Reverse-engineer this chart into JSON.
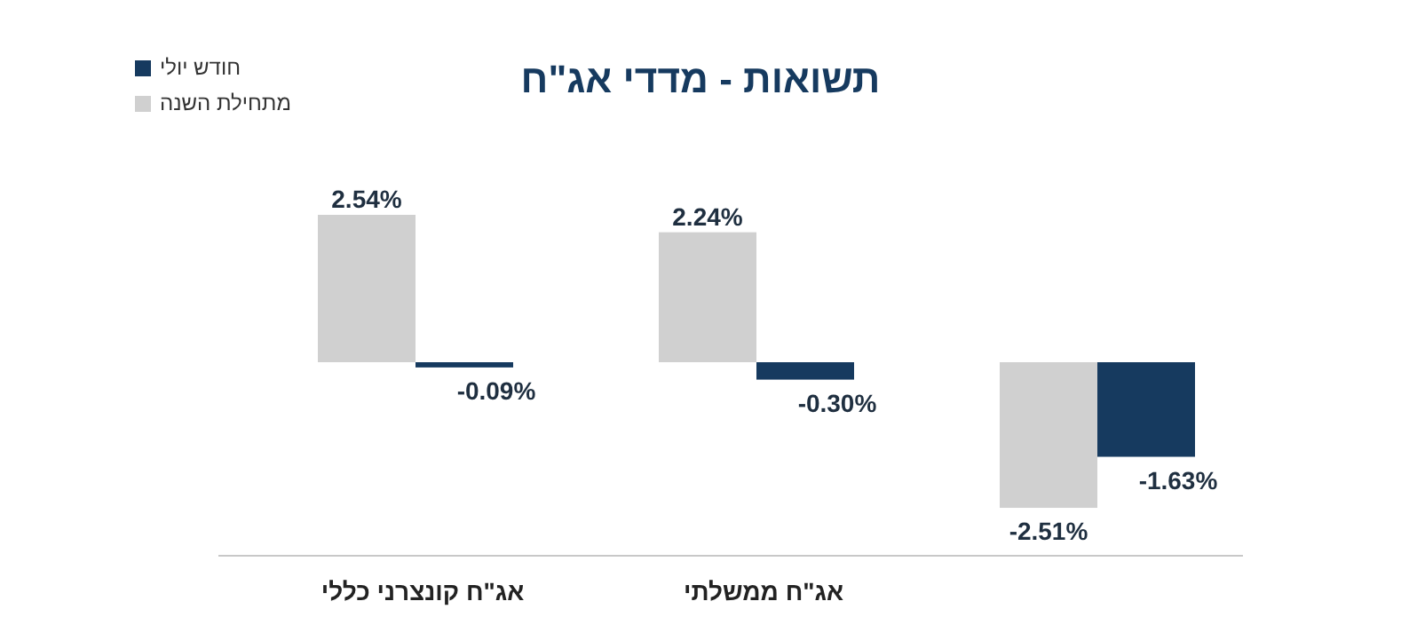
{
  "chart_data": {
    "type": "bar",
    "title": "תשואות - מדדי אג\"ח",
    "categories": [
      "אג\"ח קונצרני כללי",
      "אג\"ח ממשלתי",
      null
    ],
    "series": [
      {
        "name": "מתחילת השנה",
        "color": "#d0d0d0",
        "values": [
          2.54,
          2.24,
          -2.51
        ],
        "value_labels": [
          "2.54%",
          "2.24%",
          "-2.51%"
        ]
      },
      {
        "name": "חודש יולי",
        "color": "#163a5f",
        "values": [
          -0.09,
          -0.3,
          -1.63
        ],
        "value_labels": [
          "-0.09%",
          "-0.30%",
          "-1.63%"
        ]
      }
    ],
    "legend": "top left"
  }
}
